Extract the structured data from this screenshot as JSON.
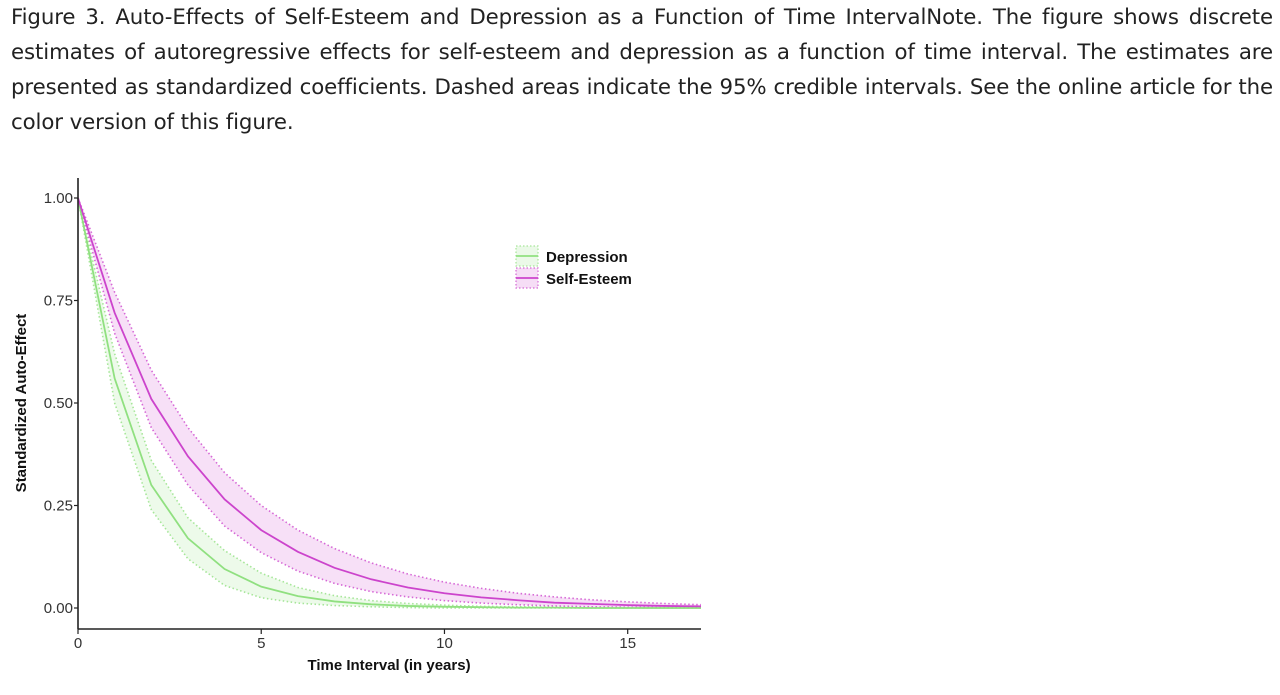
{
  "caption": "Figure 3. Auto-Effects of Self-Esteem and Depression as a Function of Time IntervalNote.   The figure shows discrete estimates of autoregressive effects for self-esteem and depression as a function of time interval. The estimates are presented as standardized coefficients. Dashed areas indicate the 95% credible intervals. See the online article for the color version of this figure.",
  "chart_data": {
    "type": "line",
    "title": "",
    "xlabel": "Time Interval (in years)",
    "ylabel": "Standardized Auto-Effect",
    "xlim": [
      0,
      17
    ],
    "ylim": [
      0,
      1
    ],
    "xticks": [
      0,
      5,
      10,
      15
    ],
    "xtick_labels": [
      "0",
      "5",
      "10",
      "15"
    ],
    "yticks": [
      0,
      0.25,
      0.5,
      0.75,
      1
    ],
    "ytick_labels": [
      "0.00",
      "0.25",
      "0.50",
      "0.75",
      "1.00"
    ],
    "grid": false,
    "legend_position": "top-right",
    "x": [
      0,
      1,
      2,
      3,
      4,
      5,
      6,
      7,
      8,
      9,
      10,
      11,
      12,
      13,
      14,
      15,
      16,
      17
    ],
    "series": [
      {
        "name": "Depression",
        "color": "#90e080",
        "values": [
          1.0,
          0.56,
          0.3,
          0.17,
          0.095,
          0.052,
          0.029,
          0.016,
          0.009,
          0.005,
          0.003,
          0.002,
          0.001,
          0.001,
          0.0,
          0.0,
          0.0,
          0.0
        ],
        "lower": [
          1.0,
          0.5,
          0.24,
          0.12,
          0.055,
          0.025,
          0.012,
          0.006,
          0.003,
          0.001,
          0.0,
          0.0,
          0.0,
          0.0,
          0.0,
          0.0,
          0.0,
          0.0
        ],
        "upper": [
          1.0,
          0.62,
          0.36,
          0.22,
          0.14,
          0.085,
          0.05,
          0.03,
          0.018,
          0.011,
          0.007,
          0.004,
          0.003,
          0.002,
          0.001,
          0.001,
          0.0,
          0.0
        ]
      },
      {
        "name": "Self-Esteem",
        "color": "#cc44cc",
        "values": [
          1.0,
          0.72,
          0.51,
          0.37,
          0.265,
          0.19,
          0.137,
          0.098,
          0.07,
          0.05,
          0.036,
          0.026,
          0.019,
          0.013,
          0.01,
          0.007,
          0.005,
          0.004
        ],
        "lower": [
          1.0,
          0.67,
          0.44,
          0.3,
          0.2,
          0.135,
          0.09,
          0.06,
          0.04,
          0.027,
          0.018,
          0.012,
          0.008,
          0.005,
          0.003,
          0.002,
          0.001,
          0.001
        ],
        "upper": [
          1.0,
          0.77,
          0.58,
          0.44,
          0.33,
          0.25,
          0.19,
          0.145,
          0.11,
          0.083,
          0.063,
          0.048,
          0.036,
          0.027,
          0.02,
          0.015,
          0.011,
          0.008
        ]
      }
    ]
  }
}
